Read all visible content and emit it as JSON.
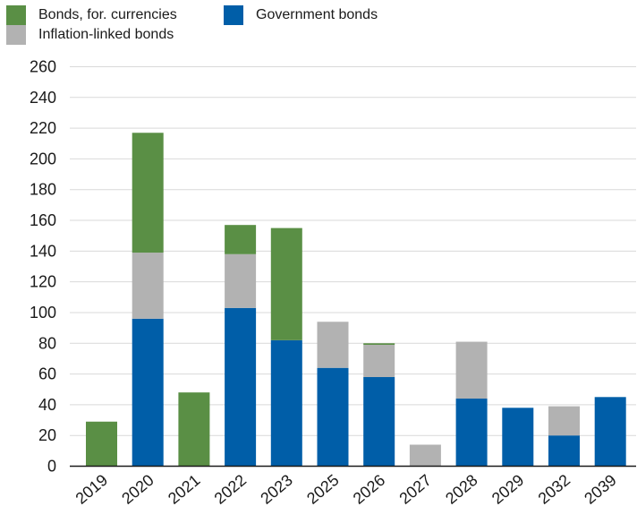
{
  "chart_data": {
    "type": "bar",
    "stacked": true,
    "categories": [
      "2019",
      "2020",
      "2021",
      "2022",
      "2023",
      "2025",
      "2026",
      "2027",
      "2028",
      "2029",
      "2032",
      "2039"
    ],
    "series": [
      {
        "name": "Government bonds",
        "color": "#005ea8",
        "values": [
          0,
          96,
          0,
          103,
          82,
          64,
          58,
          0,
          44,
          38,
          20,
          45
        ]
      },
      {
        "name": "Inflation-linked bonds",
        "color": "#b2b2b2",
        "values": [
          0,
          43,
          0,
          35,
          0,
          30,
          21,
          14,
          37,
          0,
          19,
          0
        ]
      },
      {
        "name": "Bonds, for. currencies",
        "color": "#5a8f45",
        "values": [
          29,
          78,
          48,
          19,
          73,
          0,
          1,
          0,
          0,
          0,
          0,
          0
        ]
      }
    ],
    "yticks": [
      0,
      20,
      40,
      60,
      80,
      100,
      120,
      140,
      160,
      180,
      200,
      220,
      240,
      260
    ],
    "ylim": [
      0,
      260
    ],
    "grid": true,
    "legend_position": "top-left"
  }
}
